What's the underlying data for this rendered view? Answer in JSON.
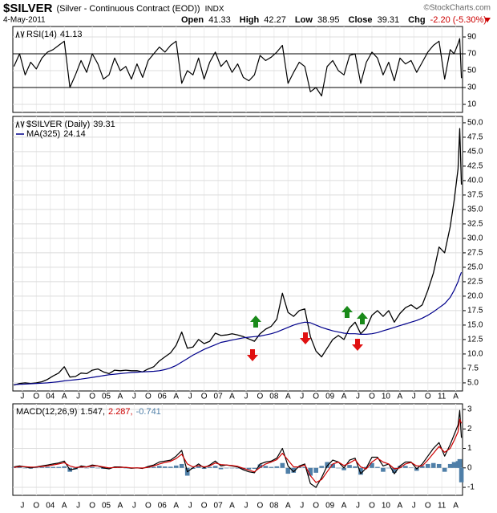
{
  "header": {
    "symbol": "$SILVER",
    "description": "(Silver - Continuous Contract (EOD))",
    "exchange": "INDX",
    "date": "4-May-2011",
    "watermark": "©StockCharts.com",
    "quote": [
      {
        "label": "Open",
        "value": 41.33
      },
      {
        "label": "High",
        "value": 42.27
      },
      {
        "label": "Low",
        "value": 38.95
      },
      {
        "label": "Close",
        "value": 39.31
      },
      {
        "label": "Chg",
        "value": "-2.20 (-5.30%)"
      }
    ]
  },
  "x_axis": {
    "xlim": [
      2003.33,
      2011.37
    ],
    "xticks": [
      {
        "value": 2003.5,
        "label": "J"
      },
      {
        "value": 2003.75,
        "label": "O"
      },
      {
        "value": 2004,
        "label": "04"
      },
      {
        "value": 2004.25,
        "label": "A"
      },
      {
        "value": 2004.5,
        "label": "J"
      },
      {
        "value": 2004.75,
        "label": "O"
      },
      {
        "value": 2005,
        "label": "05"
      },
      {
        "value": 2005.25,
        "label": "A"
      },
      {
        "value": 2005.5,
        "label": "J"
      },
      {
        "value": 2005.75,
        "label": "O"
      },
      {
        "value": 2006,
        "label": "06"
      },
      {
        "value": 2006.25,
        "label": "A"
      },
      {
        "value": 2006.5,
        "label": "J"
      },
      {
        "value": 2006.75,
        "label": "O"
      },
      {
        "value": 2007,
        "label": "07"
      },
      {
        "value": 2007.25,
        "label": "A"
      },
      {
        "value": 2007.5,
        "label": "J"
      },
      {
        "value": 2007.75,
        "label": "O"
      },
      {
        "value": 2008,
        "label": "08"
      },
      {
        "value": 2008.25,
        "label": "A"
      },
      {
        "value": 2008.5,
        "label": "J"
      },
      {
        "value": 2008.75,
        "label": "O"
      },
      {
        "value": 2009,
        "label": "09"
      },
      {
        "value": 2009.25,
        "label": "A"
      },
      {
        "value": 2009.5,
        "label": "J"
      },
      {
        "value": 2009.75,
        "label": "O"
      },
      {
        "value": 2010,
        "label": "10"
      },
      {
        "value": 2010.25,
        "label": "A"
      },
      {
        "value": 2010.5,
        "label": "J"
      },
      {
        "value": 2010.75,
        "label": "O"
      },
      {
        "value": 2011,
        "label": "11"
      },
      {
        "value": 2011.25,
        "label": "A"
      }
    ],
    "x": [
      2003.35,
      2003.45,
      2003.55,
      2003.65,
      2003.75,
      2003.85,
      2003.95,
      2004.05,
      2004.15,
      2004.25,
      2004.35,
      2004.45,
      2004.55,
      2004.65,
      2004.75,
      2004.85,
      2004.95,
      2005.05,
      2005.15,
      2005.25,
      2005.35,
      2005.45,
      2005.55,
      2005.65,
      2005.75,
      2005.85,
      2005.95,
      2006.05,
      2006.15,
      2006.25,
      2006.35,
      2006.45,
      2006.55,
      2006.65,
      2006.75,
      2006.85,
      2006.95,
      2007.05,
      2007.15,
      2007.25,
      2007.35,
      2007.45,
      2007.55,
      2007.65,
      2007.75,
      2007.85,
      2007.95,
      2008.05,
      2008.15,
      2008.25,
      2008.35,
      2008.45,
      2008.55,
      2008.65,
      2008.75,
      2008.85,
      2008.95,
      2009.05,
      2009.15,
      2009.25,
      2009.35,
      2009.45,
      2009.55,
      2009.65,
      2009.75,
      2009.85,
      2009.95,
      2010.05,
      2010.15,
      2010.25,
      2010.35,
      2010.45,
      2010.55,
      2010.65,
      2010.75,
      2010.85,
      2010.95,
      2011.05,
      2011.15,
      2011.22,
      2011.29,
      2011.32,
      2011.35
    ]
  },
  "chart_data": [
    {
      "type": "line",
      "ylim": [
        0.5,
        102.4
      ],
      "yticks": [
        10,
        30,
        50,
        70,
        90
      ],
      "reference_lines": [
        30,
        70
      ],
      "series": [
        {
          "name": "RSI(14)",
          "last": 41.13,
          "color": "#000000",
          "values": [
            55,
            70,
            45,
            60,
            52,
            65,
            72,
            75,
            80,
            85,
            30,
            45,
            62,
            48,
            70,
            58,
            40,
            45,
            65,
            50,
            55,
            40,
            58,
            42,
            62,
            70,
            78,
            72,
            80,
            85,
            35,
            50,
            45,
            65,
            40,
            60,
            72,
            55,
            62,
            48,
            58,
            42,
            38,
            45,
            68,
            62,
            66,
            72,
            80,
            35,
            48,
            60,
            55,
            25,
            30,
            20,
            55,
            62,
            50,
            45,
            68,
            70,
            35,
            60,
            72,
            65,
            45,
            60,
            38,
            65,
            58,
            62,
            48,
            60,
            72,
            80,
            85,
            40,
            75,
            70,
            82,
            88,
            41.13
          ]
        }
      ]
    },
    {
      "type": "line",
      "ylim": [
        3.6,
        51.1
      ],
      "yticks": [
        {
          "value": 5,
          "label": "5.0"
        },
        7.5,
        {
          "value": 10,
          "label": "10.0"
        },
        12.5,
        {
          "value": 15,
          "label": "15.0"
        },
        17.5,
        {
          "value": 20,
          "label": "20.0"
        },
        22.5,
        {
          "value": 25,
          "label": "25.0"
        },
        27.5,
        {
          "value": 30,
          "label": "30.0"
        },
        32.5,
        {
          "value": 35,
          "label": "35.0"
        },
        37.5,
        {
          "value": 40,
          "label": "40.0"
        },
        42.5,
        {
          "value": 45,
          "label": "45.0"
        },
        47.5,
        {
          "value": 50,
          "label": "50.0"
        }
      ],
      "series": [
        {
          "name": "$SILVER (Daily)",
          "last": 39.31,
          "color": "#000000",
          "values": [
            4.6,
            4.9,
            5.0,
            4.9,
            5.0,
            5.2,
            5.6,
            6.2,
            6.7,
            7.8,
            6.0,
            6.1,
            6.7,
            6.6,
            7.2,
            7.4,
            6.9,
            6.6,
            7.2,
            7.1,
            7.2,
            7.1,
            7.1,
            6.9,
            7.4,
            7.8,
            8.8,
            9.5,
            10.2,
            11.5,
            13.8,
            11.0,
            11.2,
            12.5,
            11.8,
            12.2,
            13.6,
            13.2,
            13.3,
            13.5,
            13.3,
            13.0,
            12.6,
            12.2,
            13.5,
            14.3,
            14.8,
            16.0,
            20.5,
            17.2,
            16.5,
            17.5,
            17.8,
            13.0,
            10.5,
            9.5,
            11.0,
            12.5,
            13.2,
            12.5,
            14.5,
            15.5,
            13.5,
            14.5,
            16.7,
            17.5,
            16.5,
            17.5,
            15.5,
            17.0,
            18.0,
            18.5,
            17.8,
            18.5,
            21.0,
            24.0,
            28.5,
            27.5,
            32.0,
            36.5,
            42.0,
            49.0,
            39.31
          ]
        },
        {
          "name": "MA(325)",
          "last": 24.14,
          "color": "#00008b",
          "values": [
            4.7,
            4.75,
            4.8,
            4.85,
            4.9,
            4.95,
            5.0,
            5.1,
            5.2,
            5.35,
            5.45,
            5.55,
            5.65,
            5.8,
            5.95,
            6.1,
            6.25,
            6.4,
            6.5,
            6.6,
            6.7,
            6.8,
            6.85,
            6.9,
            6.95,
            7.0,
            7.1,
            7.3,
            7.6,
            8.0,
            8.6,
            9.2,
            9.8,
            10.3,
            10.8,
            11.2,
            11.6,
            12.0,
            12.2,
            12.4,
            12.6,
            12.8,
            12.9,
            13.0,
            13.1,
            13.3,
            13.5,
            13.8,
            14.2,
            14.6,
            15.0,
            15.3,
            15.5,
            15.4,
            15.0,
            14.6,
            14.3,
            14.0,
            13.8,
            13.6,
            13.5,
            13.5,
            13.4,
            13.4,
            13.5,
            13.7,
            14.0,
            14.3,
            14.6,
            14.9,
            15.2,
            15.5,
            15.8,
            16.2,
            16.7,
            17.3,
            18.0,
            18.7,
            19.8,
            21.0,
            22.5,
            23.4,
            24.14
          ]
        }
      ]
    },
    {
      "type": "line",
      "label": "MACD(12,26,9)",
      "ylim": [
        -1.41,
        3.29
      ],
      "yticks": [
        -1,
        0,
        1,
        2,
        3
      ],
      "series": [
        {
          "kind": "bar",
          "last_label": "-0.741",
          "color": "#4f7fa8",
          "values": [
            0.02,
            0.04,
            -0.01,
            -0.04,
            0.01,
            0.03,
            0.05,
            0.05,
            0.05,
            0.08,
            -0.2,
            -0.07,
            0.05,
            0,
            0.05,
            0,
            -0.05,
            -0.05,
            0.03,
            0.02,
            -0.01,
            -0.02,
            0,
            -0.02,
            0.05,
            0.05,
            0.1,
            0.07,
            0.06,
            0.12,
            0.2,
            -0.4,
            -0.05,
            0.08,
            -0.05,
            0.05,
            0.1,
            -0.07,
            0,
            -0.02,
            -0.03,
            -0.08,
            -0.08,
            -0.05,
            0.18,
            0.1,
            0.05,
            0.08,
            0.25,
            -0.3,
            -0.25,
            0.05,
            0.05,
            -0.4,
            -0.25,
            0.1,
            0.3,
            0.2,
            0,
            -0.12,
            0.15,
            0.08,
            -0.35,
            0.05,
            0.25,
            0.05,
            -0.2,
            0,
            -0.25,
            0.1,
            0.1,
            0.02,
            -0.15,
            0.1,
            0.2,
            0.25,
            0.2,
            -0.2,
            0.2,
            0.3,
            0.35,
            0.45,
            -0.741
          ]
        },
        {
          "kind": "line",
          "last_label": "1.547,",
          "color": "#000000",
          "values": [
            0.05,
            0.1,
            0.05,
            0,
            0.05,
            0.1,
            0.15,
            0.2,
            0.25,
            0.35,
            -0.1,
            -0.05,
            0.1,
            0.05,
            0.15,
            0.1,
            0,
            -0.05,
            0.05,
            0.05,
            0.02,
            -0.02,
            0,
            -0.03,
            0.08,
            0.15,
            0.3,
            0.35,
            0.4,
            0.6,
            0.9,
            -0.2,
            0,
            0.2,
            0,
            0.15,
            0.35,
            0.1,
            0.15,
            0.1,
            0.05,
            -0.1,
            -0.2,
            -0.25,
            0.2,
            0.3,
            0.35,
            0.5,
            1.0,
            0.1,
            -0.2,
            0.1,
            0.2,
            -0.8,
            -1.0,
            -0.5,
            0.1,
            0.4,
            0.3,
            0,
            0.4,
            0.5,
            -0.3,
            0,
            0.55,
            0.55,
            0.1,
            0.2,
            -0.3,
            0.1,
            0.3,
            0.3,
            -0.05,
            0.2,
            0.6,
            1.0,
            1.3,
            0.6,
            1.2,
            1.7,
            2.2,
            2.95,
            1.547
          ]
        },
        {
          "kind": "line",
          "last_label": "2.287,",
          "color": "#cc0000",
          "values": [
            0.03,
            0.06,
            0.06,
            0.04,
            0.04,
            0.07,
            0.1,
            0.15,
            0.2,
            0.27,
            0.1,
            0.02,
            0.05,
            0.05,
            0.1,
            0.1,
            0.05,
            0,
            0.02,
            0.03,
            0.03,
            0,
            0,
            -0.01,
            0.03,
            0.1,
            0.2,
            0.28,
            0.34,
            0.48,
            0.7,
            0.2,
            0.05,
            0.12,
            0.05,
            0.1,
            0.25,
            0.17,
            0.15,
            0.12,
            0.08,
            -0.02,
            -0.12,
            -0.2,
            0.02,
            0.2,
            0.3,
            0.42,
            0.75,
            0.4,
            0.05,
            0.05,
            0.15,
            -0.4,
            -0.75,
            -0.6,
            -0.2,
            0.2,
            0.3,
            0.12,
            0.25,
            0.42,
            0.05,
            -0.05,
            0.3,
            0.5,
            0.3,
            0.2,
            -0.05,
            0,
            0.2,
            0.28,
            0.1,
            0.1,
            0.4,
            0.75,
            1.1,
            0.8,
            1.0,
            1.4,
            1.85,
            2.5,
            2.287
          ]
        }
      ]
    }
  ]
}
